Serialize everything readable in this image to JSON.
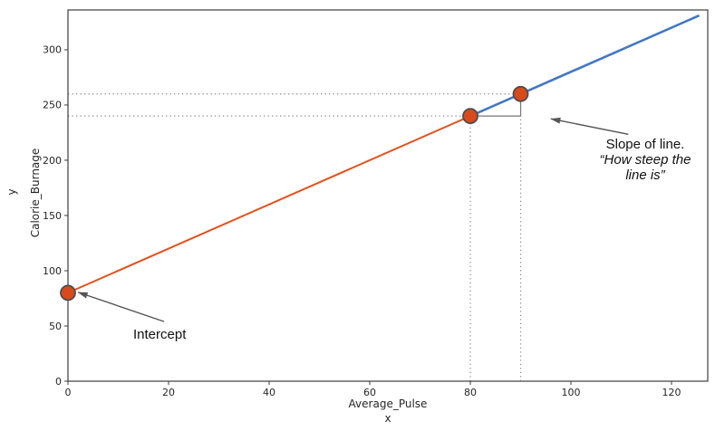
{
  "figure": {
    "background": "#ffffff",
    "spine_color": "#3c3c3c"
  },
  "chart_data": {
    "type": "line",
    "title": "",
    "xlabel": "Average_Pulse",
    "xlabel_secondary": "x",
    "ylabel": "Calorie_Burnage",
    "ylabel_secondary": "y",
    "xlim": [
      0,
      127.2
    ],
    "ylim": [
      0,
      336
    ],
    "x_ticks": [
      0,
      20,
      40,
      60,
      80,
      100,
      120
    ],
    "y_ticks": [
      0,
      50,
      100,
      150,
      200,
      250,
      300
    ],
    "grid": false,
    "legend": "none",
    "key_values": {
      "intercept": 80,
      "slope": 2
    },
    "series": [
      {
        "name": "line-segment-before-slope",
        "color": "#e2511c",
        "width": 2,
        "x": [
          0,
          80
        ],
        "y": [
          80,
          240
        ]
      },
      {
        "name": "line-segment-after-slope",
        "color": "#4377c4",
        "width": 2.6,
        "x": [
          80,
          125.5
        ],
        "y": [
          240,
          331
        ]
      }
    ],
    "markers": {
      "color": "#d84a1c",
      "edge_color": "#4d4d4d",
      "radius": 8,
      "points": [
        [
          0,
          80
        ],
        [
          80,
          240
        ],
        [
          90,
          260
        ]
      ]
    },
    "guide_lines": {
      "color": "#8a8a8a",
      "horizontal": [
        {
          "y": 240,
          "x_from": 0,
          "x_to": 80
        },
        {
          "y": 260,
          "x_from": 0,
          "x_to": 90
        }
      ],
      "vertical": [
        {
          "x": 80,
          "y_from": 0,
          "y_to": 240
        },
        {
          "x": 90,
          "y_from": 0,
          "y_to": 260
        }
      ]
    },
    "slope_triangle": {
      "color": "#777777",
      "points": [
        [
          80,
          240
        ],
        [
          90,
          240
        ],
        [
          90,
          260
        ]
      ]
    },
    "annotations": {
      "arrow_color": "#555555",
      "intercept": {
        "label": "Intercept",
        "arrow_from": [
          19.1,
          54
        ],
        "arrow_to": [
          2.0,
          80.5
        ]
      },
      "slope": {
        "line1": "Slope of line.",
        "line2": "“How steep the",
        "line3": "line is”",
        "arrow_from": [
          111.4,
          223.5
        ],
        "arrow_to": [
          96.0,
          237.5
        ]
      }
    }
  }
}
